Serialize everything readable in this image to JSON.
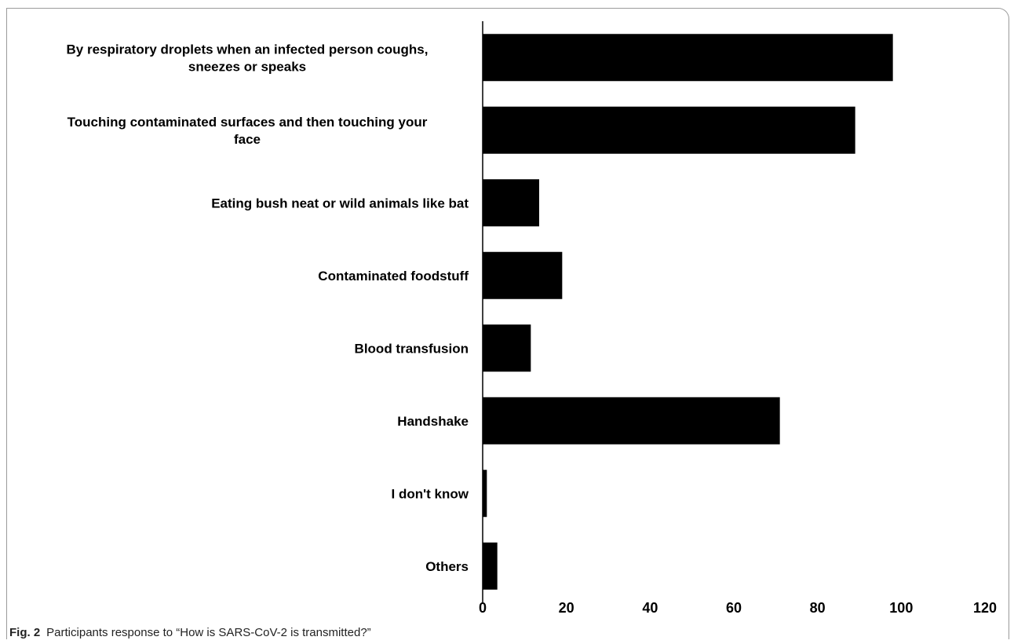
{
  "chart_data": {
    "type": "bar",
    "orientation": "horizontal",
    "categories": [
      [
        "By respiratory droplets when an infected person coughs,",
        "sneezes or speaks"
      ],
      [
        "Touching contaminated surfaces and then touching your",
        "face"
      ],
      [
        "Eating bush neat or wild animals like bat"
      ],
      [
        "Contaminated foodstuff"
      ],
      [
        "Blood transfusion"
      ],
      [
        "Handshake"
      ],
      [
        "I don't know"
      ],
      [
        "Others"
      ]
    ],
    "values": [
      98,
      89,
      13.5,
      19,
      11.5,
      71,
      1,
      3.5
    ],
    "xlim": [
      0,
      120
    ],
    "xticks": [
      "0",
      "20",
      "40",
      "60",
      "80",
      "100",
      "120"
    ],
    "bar_color": "#000000",
    "xlabel": "",
    "ylabel": "",
    "grid": false
  },
  "caption": {
    "figure_label": "Fig. 2",
    "text": "Participants response to “How is SARS-CoV-2 is transmitted?”"
  }
}
